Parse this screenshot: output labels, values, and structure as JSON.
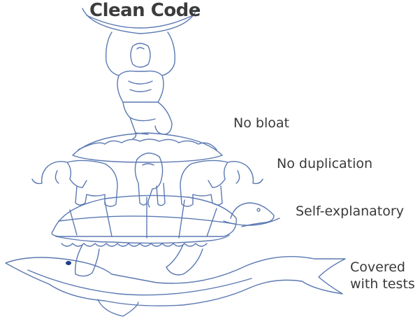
{
  "title": "Clean Code",
  "layers": [
    {
      "label": "No bloat"
    },
    {
      "label": "No duplication"
    },
    {
      "label": "Self-explanatory"
    },
    {
      "label": "Covered with tests"
    }
  ],
  "labels_line2": {
    "tests_a": "Covered",
    "tests_b": "with tests"
  },
  "colors": {
    "stroke": "#5b79b2",
    "text": "#3a3a3a"
  },
  "figures": [
    "atlas",
    "disc",
    "elephants",
    "turtle",
    "whale"
  ]
}
